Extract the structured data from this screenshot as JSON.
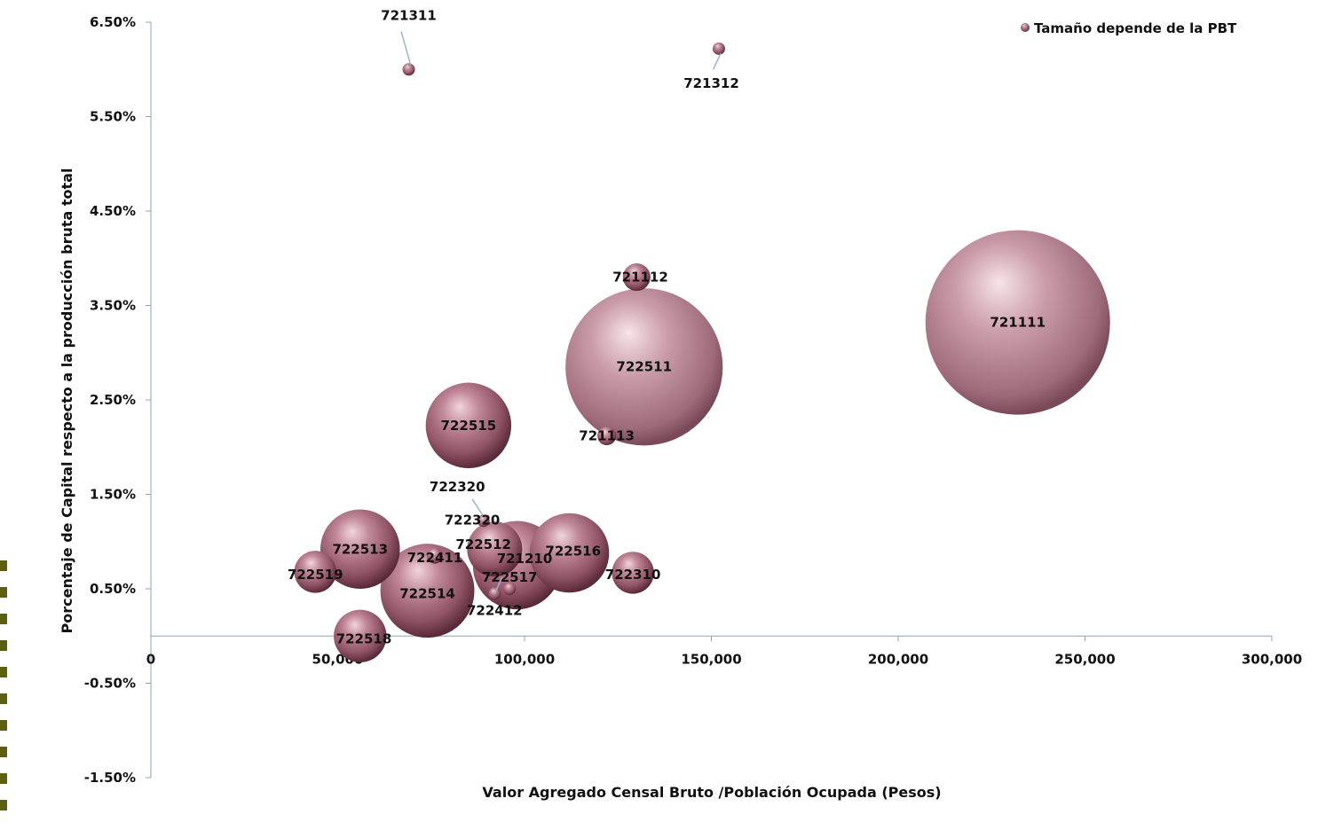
{
  "chart_data": {
    "type": "bubble",
    "xlabel": "Valor Agregado Censal Bruto /Población Ocupada (Pesos)",
    "ylabel": "Porcentaje de Capital respecto a la producción bruta total",
    "xlim": [
      0,
      300000
    ],
    "ylim": [
      -1.5,
      6.5
    ],
    "x_ticks": [
      0,
      50000,
      100000,
      150000,
      200000,
      250000,
      300000
    ],
    "x_tick_labels": [
      "0",
      "50,000",
      "100,000",
      "150,000",
      "200,000",
      "250,000",
      "300,000"
    ],
    "y_ticks": [
      6.5,
      5.5,
      4.5,
      3.5,
      2.5,
      1.5,
      0.5,
      -0.5,
      -1.5
    ],
    "y_tick_labels": [
      "6.50%",
      "5.50%",
      "4.50%",
      "3.50%",
      "2.50%",
      "1.50%",
      "0.50%",
      "-0.50%",
      "-1.50%"
    ],
    "legend": {
      "label": "Tamaño depende de la PBT",
      "position": "top-right"
    },
    "bubble_color": "#a86e7f",
    "bubble_dark_color": "#7a3b50",
    "points": [
      {
        "label": "721311",
        "x": 69000,
        "y": 6.0,
        "size": 1
      },
      {
        "label": "721312",
        "x": 152000,
        "y": 6.22,
        "size": 1
      },
      {
        "label": "721112",
        "x": 130000,
        "y": 3.8,
        "size": 30
      },
      {
        "label": "721111",
        "x": 232000,
        "y": 3.32,
        "size": 1350
      },
      {
        "label": "722511",
        "x": 132000,
        "y": 2.85,
        "size": 980
      },
      {
        "label": "722515",
        "x": 85000,
        "y": 2.23,
        "size": 290
      },
      {
        "label": "721113",
        "x": 122000,
        "y": 2.12,
        "size": 14
      },
      {
        "label": "722320",
        "x": 89000,
        "y": 1.22,
        "size": 2
      },
      {
        "label": "722512",
        "x": 92000,
        "y": 0.92,
        "size": 120
      },
      {
        "label": "722513",
        "x": 56000,
        "y": 0.92,
        "size": 250
      },
      {
        "label": "722516",
        "x": 112000,
        "y": 0.88,
        "size": 250
      },
      {
        "label": "722411",
        "x": 76000,
        "y": 0.85,
        "size": 10
      },
      {
        "label": "721210",
        "x": 98000,
        "y": 0.75,
        "size": 310
      },
      {
        "label": "722517",
        "x": 96000,
        "y": 0.5,
        "size": 6
      },
      {
        "label": "722519",
        "x": 44000,
        "y": 0.68,
        "size": 70
      },
      {
        "label": "722310",
        "x": 129000,
        "y": 0.67,
        "size": 70
      },
      {
        "label": "722514",
        "x": 74000,
        "y": 0.48,
        "size": 350
      },
      {
        "label": "722412",
        "x": 92000,
        "y": 0.45,
        "size": 1
      },
      {
        "label": "722518",
        "x": 56000,
        "y": 0.0,
        "size": 110
      }
    ],
    "labels": [
      {
        "text": "721311",
        "x": 69000,
        "y": 6.57
      },
      {
        "text": "721312",
        "x": 150000,
        "y": 5.85
      },
      {
        "text": "721112",
        "x": 131000,
        "y": 3.8
      },
      {
        "text": "721111",
        "x": 232000,
        "y": 3.32
      },
      {
        "text": "722511",
        "x": 132000,
        "y": 2.85
      },
      {
        "text": "722515",
        "x": 85000,
        "y": 2.23
      },
      {
        "text": "721113",
        "x": 122000,
        "y": 2.12
      },
      {
        "text": "722320",
        "x": 82000,
        "y": 1.58
      },
      {
        "text": "722320",
        "x": 86000,
        "y": 1.23
      },
      {
        "text": "722512",
        "x": 89000,
        "y": 0.97
      },
      {
        "text": "722513",
        "x": 56000,
        "y": 0.92
      },
      {
        "text": "722516",
        "x": 113000,
        "y": 0.9
      },
      {
        "text": "722411",
        "x": 76000,
        "y": 0.83
      },
      {
        "text": "721210",
        "x": 100000,
        "y": 0.82
      },
      {
        "text": "722517",
        "x": 96000,
        "y": 0.62
      },
      {
        "text": "722519",
        "x": 44000,
        "y": 0.65
      },
      {
        "text": "722310",
        "x": 129000,
        "y": 0.65
      },
      {
        "text": "722514",
        "x": 74000,
        "y": 0.45
      },
      {
        "text": "722412",
        "x": 92000,
        "y": 0.27
      },
      {
        "text": "722518",
        "x": 57000,
        "y": -0.03
      }
    ],
    "leader_lines": [
      {
        "x1": 67000,
        "y1": 6.4,
        "x2": 69500,
        "y2": 6.05
      },
      {
        "x1": 150500,
        "y1": 6.0,
        "x2": 152500,
        "y2": 6.17
      },
      {
        "x1": 86000,
        "y1": 1.45,
        "x2": 89000,
        "y2": 1.27
      },
      {
        "x1": 92000,
        "y1": 0.45,
        "x2": 94000,
        "y2": 0.62
      }
    ]
  }
}
